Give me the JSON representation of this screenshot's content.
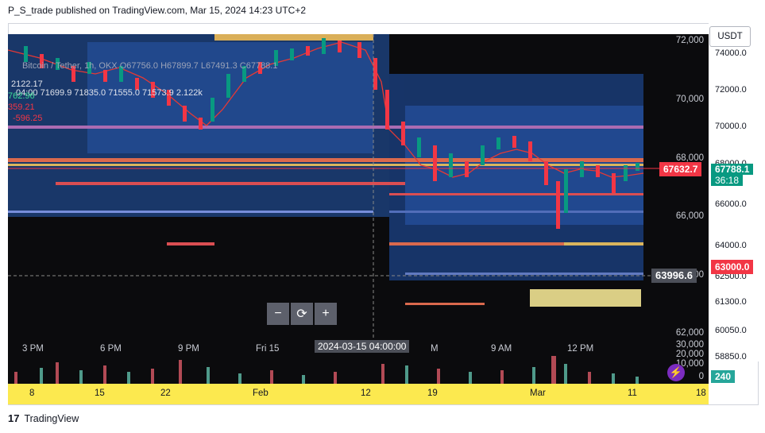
{
  "caption": "P_S_trade published on TradingView.com, Mar 15, 2024 14:23 UTC+2",
  "legend": {
    "line1": "Bitcoin / Tether, 1h, OKX  O67756.0  H67899.7  L67491.3  C67788.1",
    "line2": "04:00  71699.9  71835.0  71555.0  71573.9  2.122k",
    "vol1": "2122.17",
    "vol2": "762.96",
    "vol3": "359.21",
    "vol4": "-596.25"
  },
  "currency": "USDT",
  "price_axis": [
    "72,000",
    "70,000",
    "68,000",
    "66,000",
    "64,000",
    "62,000"
  ],
  "right_scale": [
    "74000.0",
    "72000.0",
    "70000.0",
    "68000.0",
    "66000.0",
    "64000.0",
    "62500.0",
    "61300.0",
    "60050.0",
    "58850.0"
  ],
  "price_tags": {
    "last_red": "67632.7",
    "last_green": "67788.1",
    "countdown": "36:18",
    "crosshair_price": "63996.6",
    "level_red": "63000.0",
    "volume_badge": "240"
  },
  "time_axis": [
    "3 PM",
    "6 PM",
    "9 PM",
    "Fri 15",
    "M",
    "9 AM",
    "12 PM"
  ],
  "crosshair_time": "2024-03-15 04:00:00",
  "volume_axis": [
    "30,000",
    "20,000",
    "10,000",
    "0"
  ],
  "bottom_axis": [
    "8",
    "15",
    "22",
    "Feb",
    "12",
    "19",
    "Mar",
    "11",
    "18"
  ],
  "zoom": {
    "minus": "−",
    "reset": "⟳",
    "plus": "+"
  },
  "footer": "TradingView",
  "colors": {
    "up": "#089981",
    "down": "#f23645",
    "heat_blue": "#2962ff",
    "heat_hot": "#ff9800",
    "axis_yellow": "#fce94f"
  }
}
